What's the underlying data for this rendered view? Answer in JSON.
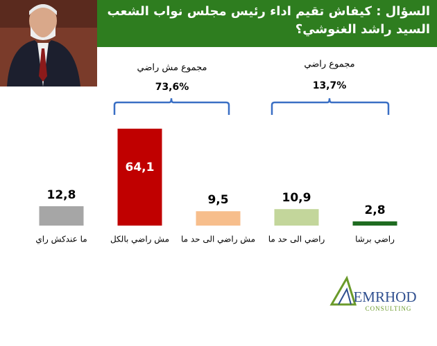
{
  "chart_data": {
    "type": "bar",
    "title": "السؤال : كيفاش تقيم اداء رئيس مجلس نواب الشعب السيد راشد الغنوشي؟",
    "categories": [
      "ما عندكش راي",
      "مش راضي بالكل",
      "مش راضي الى حد ما",
      "راضي الى حد ما",
      "راضي برشا"
    ],
    "values": [
      12.8,
      64.1,
      9.5,
      10.9,
      2.8
    ],
    "value_labels": [
      "12,8",
      "64,1",
      "9,5",
      "10,9",
      "2,8"
    ],
    "colors": [
      "#a6a6a6",
      "#c00000",
      "#f7be8c",
      "#c3d69b",
      "#1f6b21"
    ],
    "annotations": [
      {
        "text": "مجموع مش راضي",
        "total": "73,6%"
      },
      {
        "text": "مجموع راضي",
        "total": "13,7%"
      }
    ],
    "logo": {
      "name": "EMRHOD",
      "tagline": "CONSULTING"
    }
  }
}
